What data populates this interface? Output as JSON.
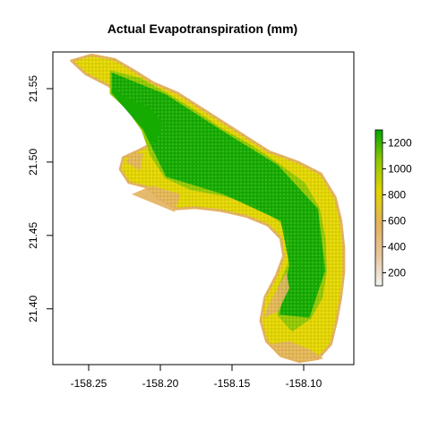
{
  "chart_data": {
    "type": "heatmap",
    "title": "Actual Evapotranspiration (mm)",
    "xlabel": "",
    "ylabel": "",
    "xlim": [
      -158.275,
      -158.065
    ],
    "ylim": [
      21.362,
      21.575
    ],
    "x_ticks": [
      -158.25,
      -158.2,
      -158.15,
      -158.1
    ],
    "x_tick_labels": [
      "-158.25",
      "-158.20",
      "-158.15",
      "-158.10"
    ],
    "y_ticks": [
      21.4,
      21.45,
      21.5,
      21.55
    ],
    "y_tick_labels": [
      "21.40",
      "21.45",
      "21.50",
      "21.55"
    ],
    "legend": {
      "placement": "right",
      "range": [
        100,
        1300
      ],
      "ticks": [
        200,
        400,
        600,
        800,
        1000,
        1200
      ],
      "tick_labels": [
        "200",
        "400",
        "600",
        "800",
        "1000",
        "1200"
      ],
      "colors": [
        "#f2f2f2",
        "#e8c49a",
        "#e3b25e",
        "#e2d500",
        "#93c800",
        "#00a600"
      ]
    },
    "region_outline_lonlat": [
      [
        -158.262,
        21.569
      ],
      [
        -158.248,
        21.573
      ],
      [
        -158.232,
        21.57
      ],
      [
        -158.218,
        21.562
      ],
      [
        -158.205,
        21.554
      ],
      [
        -158.188,
        21.547
      ],
      [
        -158.172,
        21.537
      ],
      [
        -158.156,
        21.527
      ],
      [
        -158.14,
        21.517
      ],
      [
        -158.124,
        21.507
      ],
      [
        -158.104,
        21.5
      ],
      [
        -158.088,
        21.492
      ],
      [
        -158.078,
        21.476
      ],
      [
        -158.074,
        21.46
      ],
      [
        -158.072,
        21.442
      ],
      [
        -158.072,
        21.425
      ],
      [
        -158.074,
        21.408
      ],
      [
        -158.077,
        21.392
      ],
      [
        -158.081,
        21.376
      ],
      [
        -158.09,
        21.366
      ],
      [
        -158.103,
        21.364
      ],
      [
        -158.116,
        21.368
      ],
      [
        -158.126,
        21.378
      ],
      [
        -158.13,
        21.392
      ],
      [
        -158.127,
        21.408
      ],
      [
        -158.119,
        21.423
      ],
      [
        -158.114,
        21.436
      ],
      [
        -158.116,
        21.448
      ],
      [
        -158.125,
        21.457
      ],
      [
        -158.14,
        21.463
      ],
      [
        -158.158,
        21.467
      ],
      [
        -158.176,
        21.469
      ],
      [
        -158.189,
        21.468
      ],
      [
        -158.201,
        21.475
      ],
      [
        -158.21,
        21.483
      ],
      [
        -158.222,
        21.486
      ],
      [
        -158.228,
        21.495
      ],
      [
        -158.226,
        21.503
      ],
      [
        -158.215,
        21.508
      ],
      [
        -158.203,
        21.514
      ],
      [
        -158.198,
        21.526
      ],
      [
        -158.207,
        21.537
      ],
      [
        -158.222,
        21.543
      ],
      [
        -158.236,
        21.552
      ],
      [
        -158.252,
        21.56
      ],
      [
        -158.262,
        21.569
      ]
    ],
    "high_et_core_lonlat": [
      [
        -158.234,
        21.561
      ],
      [
        -158.214,
        21.556
      ],
      [
        -158.196,
        21.546
      ],
      [
        -158.176,
        21.534
      ],
      [
        -158.158,
        21.522
      ],
      [
        -158.138,
        21.511
      ],
      [
        -158.118,
        21.498
      ],
      [
        -158.1,
        21.485
      ],
      [
        -158.09,
        21.468
      ],
      [
        -158.086,
        21.448
      ],
      [
        -158.085,
        21.426
      ],
      [
        -158.088,
        21.408
      ],
      [
        -158.096,
        21.394
      ],
      [
        -158.108,
        21.386
      ],
      [
        -158.117,
        21.396
      ],
      [
        -158.117,
        21.414
      ],
      [
        -158.11,
        21.43
      ],
      [
        -158.108,
        21.447
      ],
      [
        -158.116,
        21.46
      ],
      [
        -158.134,
        21.472
      ],
      [
        -158.156,
        21.478
      ],
      [
        -158.178,
        21.482
      ],
      [
        -158.196,
        21.49
      ],
      [
        -158.206,
        21.505
      ],
      [
        -158.212,
        21.522
      ],
      [
        -158.222,
        21.536
      ],
      [
        -158.234,
        21.547
      ],
      [
        -158.234,
        21.561
      ]
    ],
    "low_et_fringes_lonlat": [
      [
        [
          -158.22,
          21.478
        ],
        [
          -158.2,
          21.47
        ],
        [
          -158.19,
          21.466
        ],
        [
          -158.186,
          21.478
        ],
        [
          -158.206,
          21.484
        ]
      ],
      [
        [
          -158.095,
          21.372
        ],
        [
          -158.086,
          21.366
        ],
        [
          -158.1,
          21.364
        ],
        [
          -158.114,
          21.367
        ],
        [
          -158.124,
          21.376
        ],
        [
          -158.11,
          21.378
        ]
      ],
      [
        [
          -158.112,
          21.425
        ],
        [
          -158.124,
          21.404
        ],
        [
          -158.128,
          21.394
        ],
        [
          -158.118,
          21.398
        ],
        [
          -158.11,
          21.414
        ]
      ],
      [
        [
          -158.224,
          21.5
        ],
        [
          -158.214,
          21.494
        ],
        [
          -158.212,
          21.506
        ],
        [
          -158.22,
          21.506
        ]
      ]
    ]
  }
}
